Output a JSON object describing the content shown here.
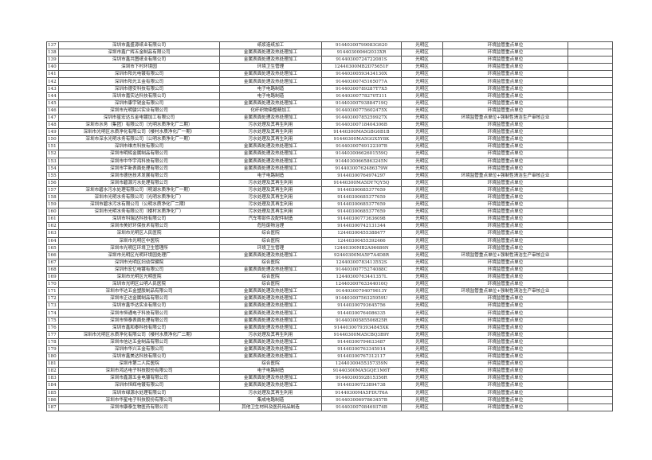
{
  "table": {
    "rows": [
      [
        "137",
        "深圳市鑫盛源纸业有限公司",
        "纸浆造纸加工",
        "91440300799083G620",
        "光明区",
        "环境监管重点单位"
      ],
      [
        "138",
        "深圳市鑫广辉五金制品有限公司",
        "金属表面处理及热处理加工",
        "914403000662033XR",
        "光明区",
        "环境监管重点单位"
      ],
      [
        "139",
        "深圳市鑫共图纸业有限公司",
        "金属表面处理及热处理加工",
        "91440300724722081S",
        "光明区",
        "环境监管重点单位"
      ],
      [
        "140",
        "深圳市下村环境园",
        "环境卫生管理",
        "12440300MB2D75651F",
        "光明区",
        "环境监管重点单位"
      ],
      [
        "141",
        "深圳市阳光电镀有限公司",
        "金属表面处理及热处理加工",
        "91440300593434130X",
        "光明区",
        "环境监管重点单位"
      ],
      [
        "142",
        "深圳市阳光五金有限公司",
        "金属表面处理及热处理加工",
        "91440300745165077A",
        "光明区",
        "环境监管重点单位"
      ],
      [
        "143",
        "深圳市德安科技有限公司",
        "电子电路制造",
        "91440300789287T7X5",
        "光明区",
        "环境监管重点单位"
      ],
      [
        "144",
        "深圳市嘉实达科技有限公司",
        "电子电路制造",
        "91440300778270T311",
        "光明区",
        "环境监管重点单位"
      ],
      [
        "145",
        "深圳市康宇锐金有限公司",
        "金属表面处理及热处理加工",
        "91440300793884719Q",
        "光明区",
        "环境监管重点单位"
      ],
      [
        "146",
        "深圳市光明骏兴实业有限公司",
        "化纤织物染整精加工",
        "91440300775602475X",
        "光明区",
        "环境监管重点单位"
      ],
      [
        "147",
        "深圳市星宏达五金电镀加工有限公司",
        "金属表面处理及热处理加工",
        "91440300785259927X",
        "光明区",
        "环境监管重点单位+强制性清洁生产审核企业"
      ],
      [
        "148",
        "深圳市水务（集团）有限公司（光明水质净化厂二期）",
        "污水处理及其再生利用",
        "91440300718404306B",
        "光明区",
        "环境监管重点单位"
      ],
      [
        "149",
        "深圳市光明区水质净化有限公司（楼村水质净化厂一期）",
        "污水处理及其再生利用",
        "91440300MA5GBG6B1B",
        "光明区",
        "环境监管重点单位"
      ],
      [
        "150",
        "深圳市深水光明水务有限公司（公明水质净化厂一期）",
        "污水处理及其再生利用",
        "91440300MA5GGX5Y8K",
        "光明区",
        "环境监管重点单位"
      ],
      [
        "151",
        "深圳市维杰科技有限公司",
        "金属表面处理及热处理加工",
        "91440300769122307B",
        "光明区",
        "环境监管重点单位"
      ],
      [
        "152",
        "深圳市明辉金属制品有限公司",
        "金属表面处理及热处理加工",
        "91440300662601559Q",
        "光明区",
        "环境监管重点单位"
      ],
      [
        "153",
        "深圳市中华宇鸿科技有限公司",
        "金属表面处理及热处理加工",
        "91440300665863245N",
        "光明区",
        "环境监管重点单位"
      ],
      [
        "154",
        "深圳市宇新表面处理有限公司",
        "金属表面处理及热处理加工",
        "91440300762486379W",
        "光明区",
        "环境监管重点单位"
      ],
      [
        "155",
        "深圳市德信技术发展有限公司",
        "电子电路制造",
        "91440300764974297",
        "光明区",
        "环境监管重点单位+强制性清洁生产审核企业"
      ],
      [
        "156",
        "深圳市碧源污水处理有限公司",
        "污水处理及其再生利用",
        "91440300MA5DY7QY5Q",
        "光明区",
        "环境监管重点单位"
      ],
      [
        "157",
        "深圳市碧水污水处理有限公司（明湖水质净化厂一期）",
        "污水处理及其再生利用",
        "91440300685377659",
        "光明区",
        "环境监管重点单位"
      ],
      [
        "158",
        "深圳市光明水务有限公司（光明水质净化厂）",
        "污水处理及其再生利用",
        "91440300685377659",
        "光明区",
        "环境监管重点单位"
      ],
      [
        "159",
        "深圳市碧水污水有限公司（公明水质净化厂二期）",
        "污水处理及其再生利用",
        "91440300685377659",
        "光明区",
        "环境监管重点单位"
      ],
      [
        "160",
        "深圳市光明水务有限公司（楼村水质净化厂）",
        "污水处理及其再生利用",
        "91440300685377659",
        "光明区",
        "环境监管重点单位"
      ],
      [
        "161",
        "深圳市科瑞达科技有限公司",
        "汽车零部件及配件制造",
        "91440300773636098",
        "光明区",
        "环境监管重点单位"
      ],
      [
        "162",
        "深圳市美好环保技术有限公司",
        "危险废物治理",
        "91440300742131344",
        "光明区",
        "环境监管重点单位"
      ],
      [
        "163",
        "深圳市光明区人民医院",
        "综合医院",
        "12440300455388477",
        "光明区",
        "环境监管重点单位"
      ],
      [
        "164",
        "深圳市光明区中医院",
        "综合医院",
        "12440300455392466",
        "光明区",
        "环境监管重点单位"
      ],
      [
        "165",
        "深圳市光明区环境卫生管理所",
        "环境卫生管理",
        "12440300MB2A96686N",
        "光明区",
        "环境监管重点单位"
      ],
      [
        "166",
        "深圳市光明区光明环境园处理厂",
        "金属表面处理及热处理加工",
        "92440300MA5F7A4D8R",
        "光明区",
        "环境监管重点单位+强制性清洁生产审核企业"
      ],
      [
        "167",
        "深圳市光明区妇幼保健院",
        "综合医院",
        "12440300783413552S",
        "光明区",
        "环境监管重点单位"
      ],
      [
        "168",
        "深圳市宏亿电镀有限公司",
        "金属表面处理及热处理加工",
        "91440300775274088C",
        "光明区",
        "环境监管重点单位"
      ],
      [
        "169",
        "深圳市光明区光明医院",
        "综合医院",
        "12440300763441357L",
        "光明区",
        "环境监管重点单位"
      ],
      [
        "170",
        "深圳市光明区公明人民医院",
        "综合医院",
        "12440300763344010Q",
        "光明区",
        "环境监管重点单位"
      ],
      [
        "171",
        "深圳市华达五金塑胶制品有限公司",
        "金属表面处理及热处理加工",
        "91440300794079613Y",
        "光明区",
        "环境监管重点单位+强制性清洁生产审核企业"
      ],
      [
        "172",
        "深圳市正达金属制品有限公司",
        "金属表面处理及热处理加工",
        "91440300756325959U",
        "光明区",
        "环境监管重点单位"
      ],
      [
        "173",
        "深圳市鑫华达实业有限公司",
        "金属表面处理及热处理加工",
        "91440300793645756",
        "光明区",
        "环境监管重点单位"
      ],
      [
        "174",
        "深圳市恒通电子科技有限公司",
        "金属表面处理及热处理加工",
        "91440300764086335",
        "光明区",
        "环境监管重点单位"
      ],
      [
        "175",
        "深圳市恒泰表面处理有限公司",
        "金属表面处理及热处理加工",
        "91440300585506825R",
        "光明区",
        "环境监管重点单位"
      ],
      [
        "176",
        "深圳市鑫和泰科技有限公司",
        "金属表面处理及热处理加工",
        "91440300793934845XK",
        "光明区",
        "环境监管重点单位"
      ],
      [
        "177",
        "深圳市光明区水质净化有限公司（楼村水质净化厂二期）",
        "污水处理及其再生利用",
        "91440300MA5CBQ3B9Y",
        "光明区",
        "环境监管重点单位"
      ],
      [
        "178",
        "深圳市信达五金制品有限公司",
        "金属表面处理及热处理加工",
        "91440300794633487",
        "光明区",
        "环境监管重点单位"
      ],
      [
        "179",
        "深圳市华兴五金有限公司",
        "金属表面处理及热处理加工",
        "91440300763345914",
        "光明区",
        "环境监管重点单位"
      ],
      [
        "180",
        "深圳市鑫美达科技有限公司",
        "金属表面处理及热处理加工",
        "91440300767312117",
        "光明区",
        "环境监管重点单位"
      ],
      [
        "181",
        "深圳市第二人民医院",
        "综合医院",
        "12440300455357359N",
        "光明区",
        "环境监管重点单位"
      ],
      [
        "182",
        "深圳市鸿达电子科技股份有限公司",
        "电子电路制造",
        "91440300MA5GQE1M6T",
        "光明区",
        "环境监管重点单位"
      ],
      [
        "183",
        "深圳市鑫源五金电镀有限公司",
        "金属表面处理及热处理加工",
        "91440300592815356R",
        "光明区",
        "环境监管重点单位"
      ],
      [
        "184",
        "深圳市恒辉电镀有限公司",
        "金属表面处理及热处理加工",
        "91440300723894738",
        "光明区",
        "环境监管重点单位"
      ],
      [
        "185",
        "深圳市绿源水处理有限公司",
        "污水处理及其再生利用",
        "91440300MA5FDUT6A",
        "光明区",
        "环境监管重点单位"
      ],
      [
        "186",
        "深圳市华星电子科技股份有限公司",
        "集成电路制造",
        "91440300697863457B",
        "光明区",
        "环境监管重点单位"
      ],
      [
        "187",
        "深圳市康泰生物医药有限公司",
        "其他卫生材料及医药用品制造",
        "91440300708469374B",
        "光明区",
        "环境监管重点单位"
      ]
    ]
  }
}
